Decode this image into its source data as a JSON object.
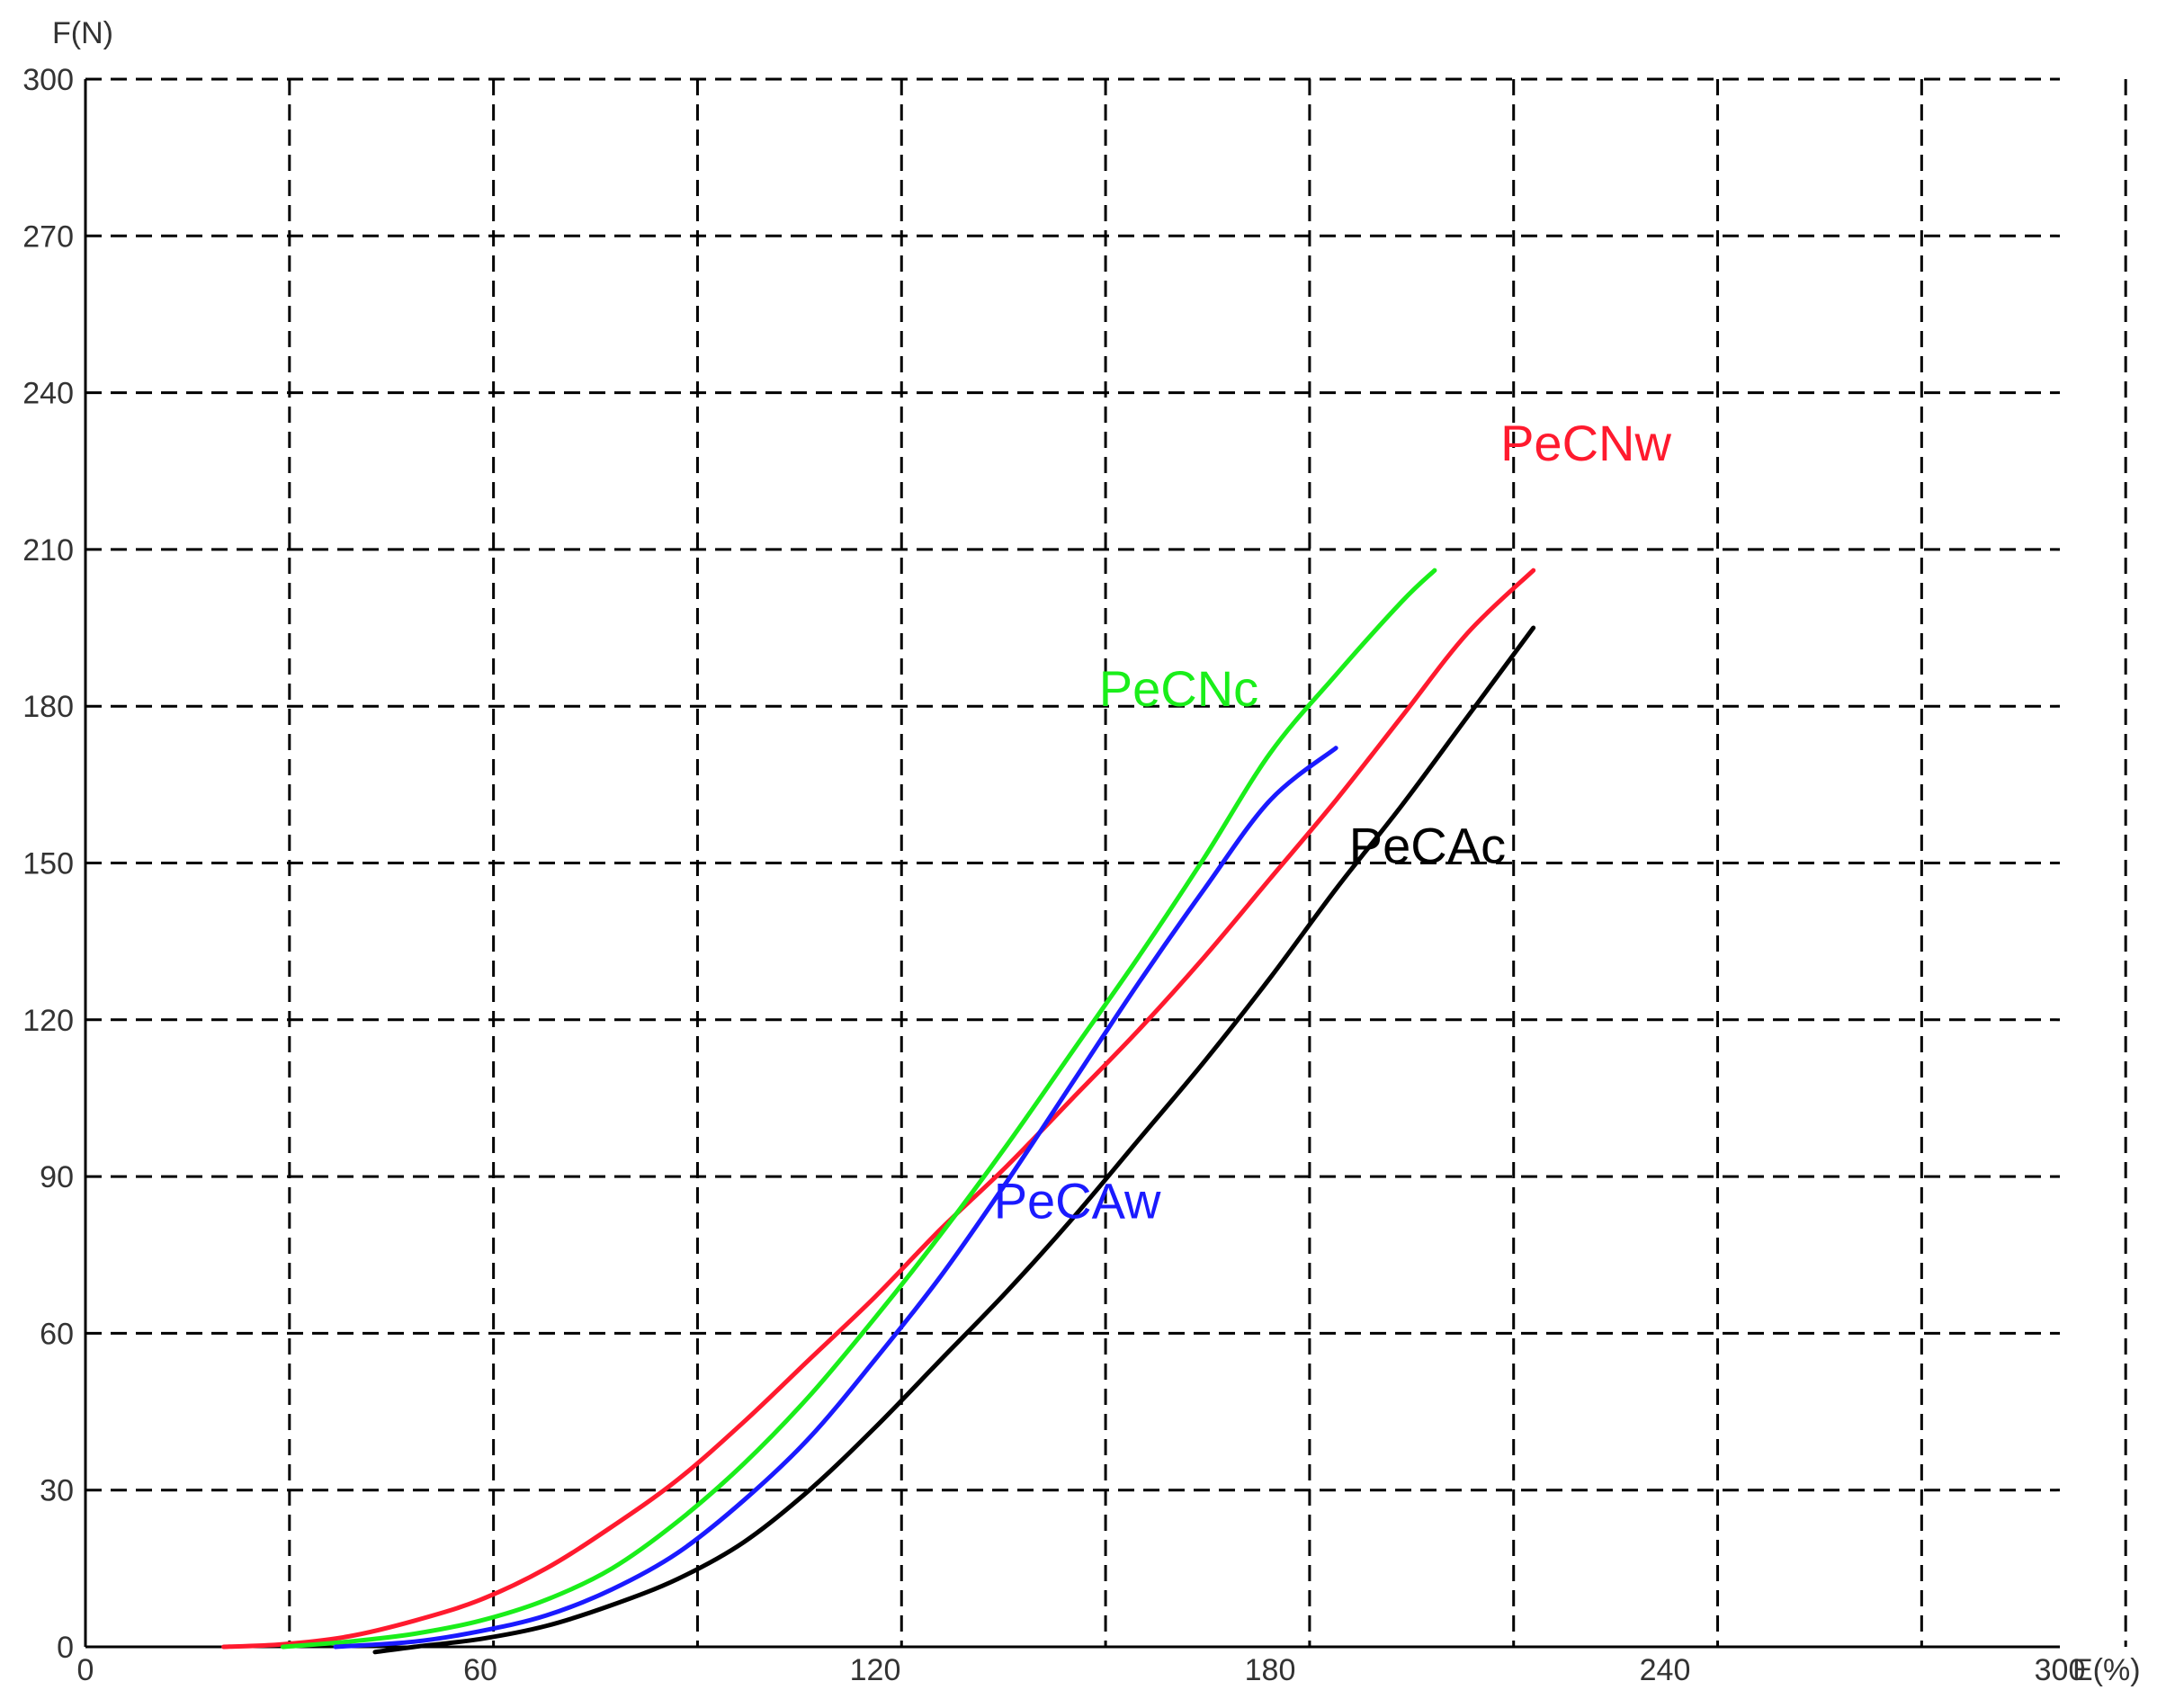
{
  "chart_data": {
    "type": "line",
    "xlabel": "E(%)",
    "ylabel": "F(N)",
    "xlim": [
      0,
      300
    ],
    "ylim": [
      0,
      300
    ],
    "x_tick_labels": [
      "0",
      "60",
      "120",
      "180",
      "240",
      "300"
    ],
    "y_tick_labels": [
      "0",
      "30",
      "60",
      "90",
      "120",
      "150",
      "180",
      "210",
      "240",
      "270",
      "300"
    ],
    "x_grid_lines": [
      31,
      62,
      93,
      124,
      155,
      186,
      217,
      248,
      279,
      310
    ],
    "y_grid_lines": [
      30,
      60,
      90,
      120,
      150,
      180,
      210,
      240,
      270,
      300
    ],
    "grid": true,
    "grid_style": "dashed",
    "series": [
      {
        "name": "PeCNw",
        "color": "#ff1a2e",
        "points": [
          [
            21,
            0
          ],
          [
            30,
            0.5
          ],
          [
            40,
            2
          ],
          [
            50,
            5
          ],
          [
            60,
            9
          ],
          [
            70,
            15
          ],
          [
            80,
            23
          ],
          [
            90,
            32
          ],
          [
            100,
            43
          ],
          [
            110,
            55
          ],
          [
            120,
            67
          ],
          [
            130,
            80
          ],
          [
            140,
            92
          ],
          [
            150,
            105
          ],
          [
            160,
            118
          ],
          [
            170,
            132
          ],
          [
            180,
            147
          ],
          [
            190,
            162
          ],
          [
            200,
            178
          ],
          [
            210,
            194
          ],
          [
            220,
            206
          ]
        ]
      },
      {
        "name": "PeCNc",
        "color": "#1aee1a",
        "points": [
          [
            30,
            0
          ],
          [
            40,
            1
          ],
          [
            50,
            2.5
          ],
          [
            60,
            5
          ],
          [
            70,
            9
          ],
          [
            80,
            15
          ],
          [
            90,
            24
          ],
          [
            100,
            35
          ],
          [
            110,
            48
          ],
          [
            120,
            63
          ],
          [
            130,
            79
          ],
          [
            140,
            96
          ],
          [
            150,
            114
          ],
          [
            160,
            132
          ],
          [
            170,
            151
          ],
          [
            180,
            171
          ],
          [
            190,
            186
          ],
          [
            200,
            200
          ],
          [
            205,
            206
          ]
        ]
      },
      {
        "name": "PeCAw",
        "color": "#1a1aff",
        "points": [
          [
            38,
            0
          ],
          [
            50,
            1
          ],
          [
            60,
            3
          ],
          [
            70,
            6
          ],
          [
            80,
            11
          ],
          [
            90,
            18
          ],
          [
            100,
            28
          ],
          [
            110,
            40
          ],
          [
            120,
            55
          ],
          [
            130,
            71
          ],
          [
            140,
            89
          ],
          [
            150,
            108
          ],
          [
            160,
            127
          ],
          [
            170,
            145
          ],
          [
            180,
            162
          ],
          [
            190,
            172
          ]
        ]
      },
      {
        "name": "PeCAc",
        "color": "#000000",
        "points": [
          [
            44,
            -1
          ],
          [
            50,
            0
          ],
          [
            60,
            1.5
          ],
          [
            70,
            4
          ],
          [
            80,
            8
          ],
          [
            90,
            13
          ],
          [
            100,
            20
          ],
          [
            110,
            30
          ],
          [
            120,
            42
          ],
          [
            130,
            55
          ],
          [
            140,
            68
          ],
          [
            150,
            82
          ],
          [
            160,
            97
          ],
          [
            170,
            112
          ],
          [
            180,
            128
          ],
          [
            190,
            145
          ],
          [
            200,
            161
          ],
          [
            210,
            178
          ],
          [
            220,
            195
          ]
        ]
      }
    ],
    "annotations": [
      {
        "text": "PeCNw",
        "x": 215,
        "y": 227,
        "color": "#ff1a2e"
      },
      {
        "text": "PeCNc",
        "x": 154,
        "y": 180,
        "color": "#1aee1a"
      },
      {
        "text": "PeCAw",
        "x": 138,
        "y": 82,
        "color": "#1a1aff"
      },
      {
        "text": "PeCAc",
        "x": 192,
        "y": 150,
        "color": "#000000"
      }
    ]
  }
}
